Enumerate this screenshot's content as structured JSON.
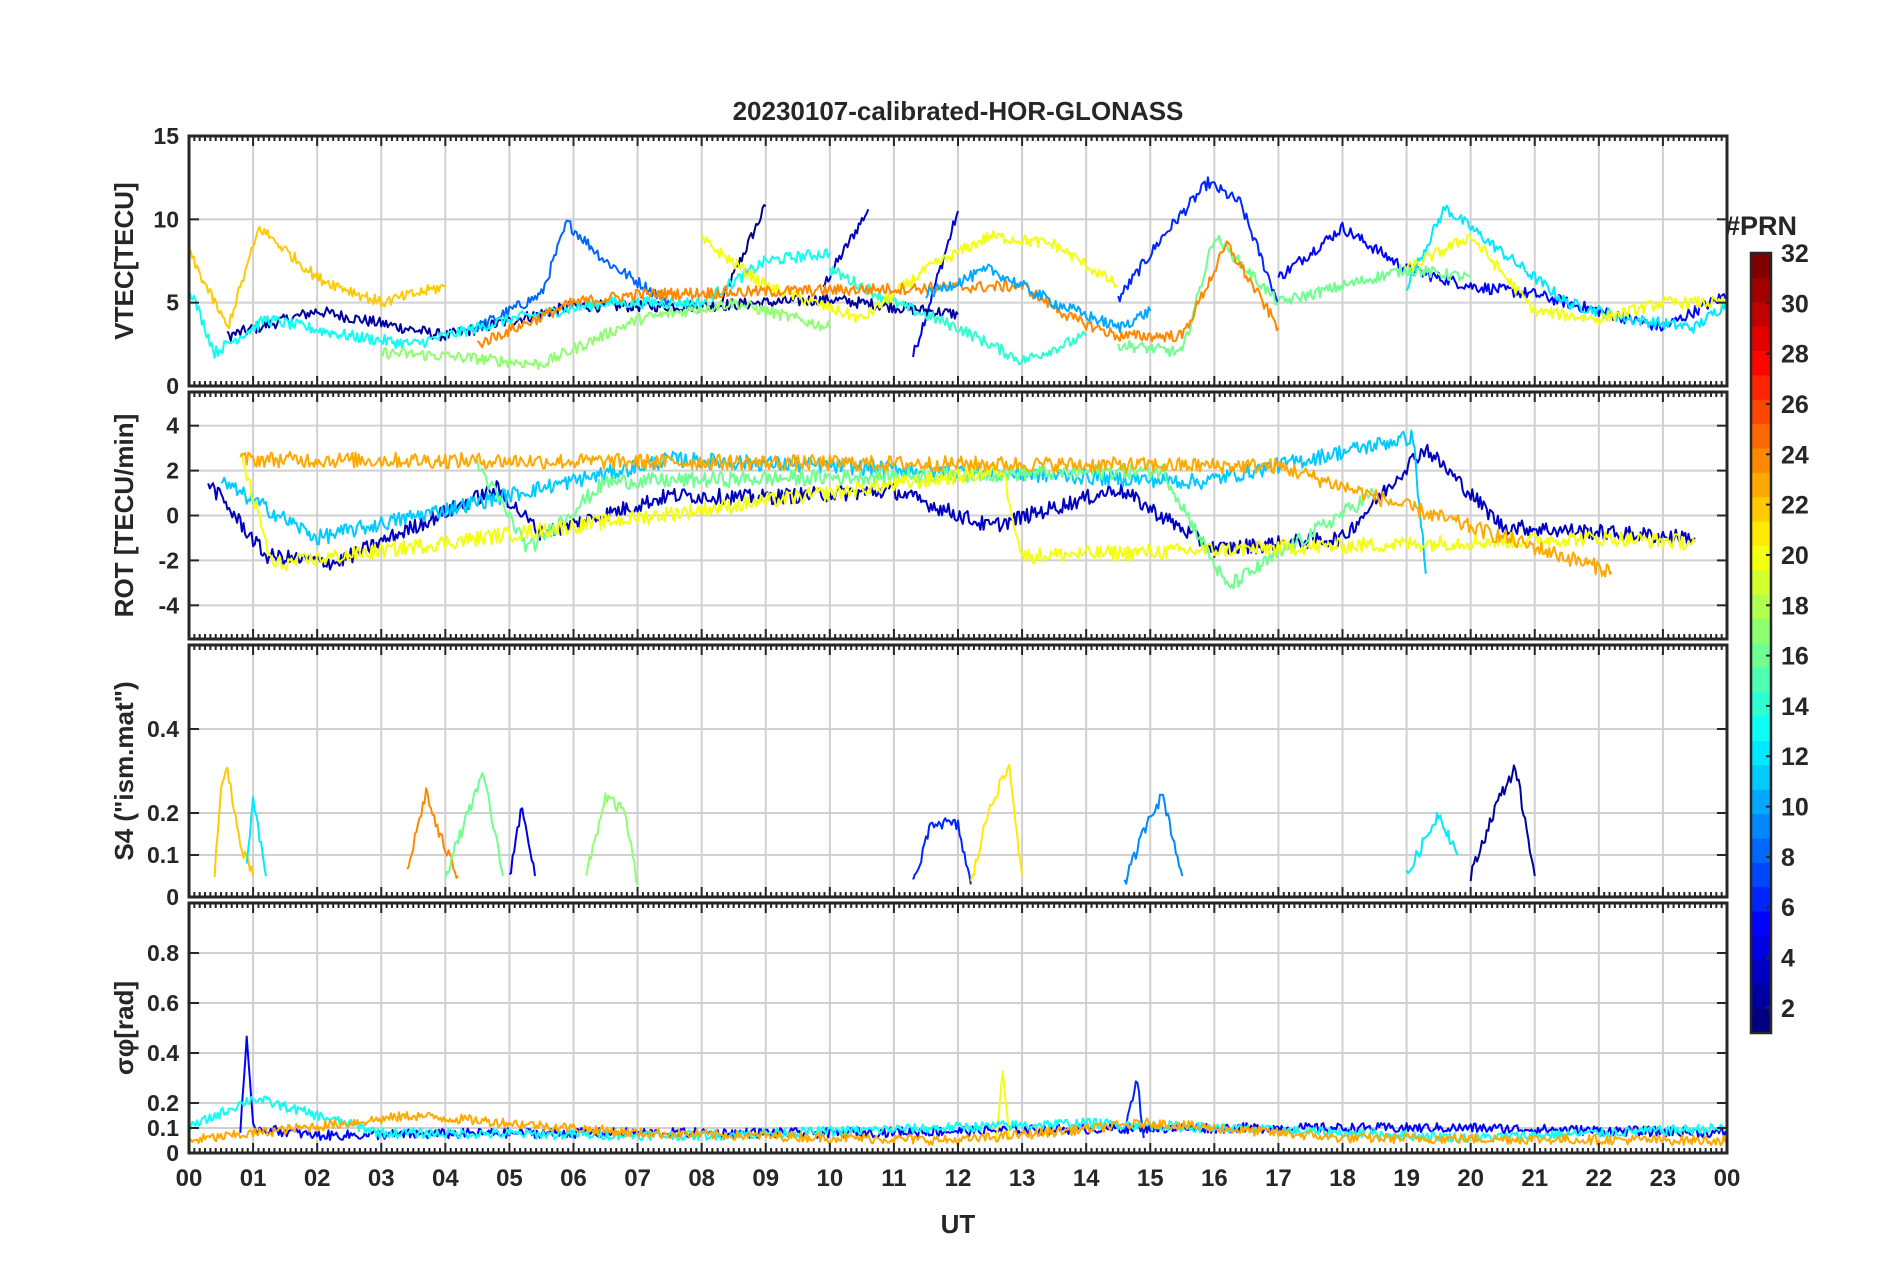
{
  "figure": {
    "title": "20230107-calibrated-HOR-GLONASS",
    "xlabel": "UT",
    "colorbar_label": "#PRN",
    "colorbar_ticks": [
      "2",
      "4",
      "6",
      "8",
      "10",
      "12",
      "14",
      "16",
      "18",
      "20",
      "22",
      "24",
      "26",
      "28",
      "30",
      "32"
    ],
    "colorbar_range": [
      1,
      32
    ],
    "colormap": "jet"
  },
  "chart_data": [
    {
      "type": "line",
      "id": "vtec",
      "ylabel": "VTEC[TECU]",
      "ylim": [
        0,
        15
      ],
      "yticks": [
        "0",
        "5",
        "10",
        "15"
      ],
      "xlim": [
        0,
        24
      ],
      "xticks": [
        "00",
        "01",
        "02",
        "03",
        "04",
        "05",
        "06",
        "07",
        "08",
        "09",
        "10",
        "11",
        "12",
        "13",
        "14",
        "15",
        "16",
        "17",
        "18",
        "19",
        "20",
        "21",
        "22",
        "23",
        "00"
      ],
      "grid": true,
      "series": [
        {
          "prn": 1,
          "x": [
            8.3,
            9.0
          ],
          "y": [
            5.0,
            10.8
          ]
        },
        {
          "prn": 3,
          "x": [
            9.9,
            10.6
          ],
          "y": [
            6.0,
            10.6
          ]
        },
        {
          "prn": 4,
          "x": [
            11.3,
            12.0
          ],
          "y": [
            1.8,
            10.5
          ]
        },
        {
          "prn": 2,
          "x": [
            0.6,
            2.0,
            4.0,
            6.0,
            8.0,
            10.0,
            12.0
          ],
          "y": [
            3.0,
            4.5,
            3.0,
            4.8,
            4.8,
            5.2,
            4.3
          ]
        },
        {
          "prn": 6,
          "x": [
            14.5,
            15.2,
            15.9,
            16.4,
            17.0
          ],
          "y": [
            5.2,
            9.0,
            12.2,
            11.0,
            5.0
          ]
        },
        {
          "prn": 8,
          "x": [
            4.5,
            5.5,
            5.9,
            6.5,
            7.5
          ],
          "y": [
            3.5,
            5.5,
            9.8,
            7.5,
            5.0
          ]
        },
        {
          "prn": 5,
          "x": [
            17.0,
            18.0,
            19.0,
            20.0,
            21.0,
            22.0,
            23.0,
            24.0
          ],
          "y": [
            6.5,
            9.5,
            7.0,
            6.0,
            5.5,
            4.5,
            3.5,
            5.5
          ]
        },
        {
          "prn": 12,
          "x": [
            19.0,
            19.6,
            20.5,
            21.5,
            22.5,
            23.5,
            24.0
          ],
          "y": [
            6.0,
            10.7,
            8.0,
            5.0,
            4.0,
            3.5,
            5.0
          ]
        },
        {
          "prn": 13,
          "x": [
            0.0,
            0.4,
            1.2,
            2.5,
            3.5,
            5.0,
            6.5,
            8.0,
            9.0,
            10.0
          ],
          "y": [
            6.0,
            2.0,
            4.0,
            3.0,
            2.5,
            4.0,
            5.0,
            5.0,
            7.5,
            8.0
          ]
        },
        {
          "prn": 14,
          "x": [
            10.0,
            11.0,
            12.0,
            13.0,
            14.0
          ],
          "y": [
            7.0,
            5.0,
            3.5,
            1.5,
            3.0
          ]
        },
        {
          "prn": 17,
          "x": [
            3.0,
            4.0,
            5.5,
            7.0,
            8.5,
            10.0
          ],
          "y": [
            2.0,
            1.8,
            1.3,
            4.0,
            5.0,
            3.5
          ]
        },
        {
          "prn": 16,
          "x": [
            14.5,
            15.5,
            16.0,
            17.0,
            18.0,
            19.0,
            20.0
          ],
          "y": [
            2.5,
            2.0,
            9.0,
            5.0,
            6.0,
            7.0,
            6.5
          ]
        },
        {
          "prn": 20,
          "x": [
            8.0,
            9.0,
            10.5,
            11.5,
            12.5,
            13.5,
            14.5
          ],
          "y": [
            8.8,
            6.0,
            4.0,
            7.0,
            9.0,
            8.5,
            6.0
          ]
        },
        {
          "prn": 20,
          "x": [
            19.0,
            20.0,
            21.0,
            22.0,
            23.0,
            24.0
          ],
          "y": [
            7.0,
            9.0,
            4.5,
            4.0,
            5.0,
            5.0
          ]
        },
        {
          "prn": 22,
          "x": [
            0.0,
            0.6,
            1.1,
            2.0,
            3.0,
            4.0
          ],
          "y": [
            8.0,
            3.5,
            9.5,
            6.5,
            5.0,
            6.0
          ]
        },
        {
          "prn": 24,
          "x": [
            4.5,
            6.0,
            7.0,
            13.0,
            13.8,
            14.5,
            15.5,
            16.2,
            17.0
          ],
          "y": [
            2.5,
            5.0,
            5.5,
            6.0,
            4.0,
            3.0,
            3.0,
            8.5,
            3.5
          ]
        },
        {
          "prn": 10,
          "x": [
            11.5,
            12.5,
            13.5,
            14.5,
            15.0
          ],
          "y": [
            5.5,
            7.0,
            5.0,
            3.5,
            4.5
          ]
        }
      ]
    },
    {
      "type": "line",
      "id": "rot",
      "ylabel": "ROT [TECU/min]",
      "ylim": [
        -5.5,
        5.5
      ],
      "yticks": [
        "-4",
        "-2",
        "0",
        "2",
        "4"
      ],
      "xlim": [
        0,
        24
      ],
      "grid": true,
      "series": [
        {
          "prn": 3,
          "x": [
            0.3,
            1.2,
            2.3,
            4.8,
            5.5,
            7.5,
            8.8,
            11.0,
            12.5,
            14.5,
            16.0,
            18.0,
            19.1,
            19.3,
            20.5,
            23.5
          ],
          "y": [
            1.5,
            -1.8,
            -2.1,
            1.2,
            -0.8,
            0.9,
            0.8,
            1.1,
            -0.5,
            1.2,
            -1.5,
            -1.0,
            2.5,
            3.0,
            -0.5,
            -1.0
          ]
        },
        {
          "prn": 11,
          "x": [
            0.5,
            2.0,
            7.5,
            15.8,
            19.1,
            19.3
          ],
          "y": [
            1.5,
            -1.0,
            2.5,
            1.5,
            3.5,
            -2.6
          ]
        },
        {
          "prn": 16,
          "x": [
            4.5,
            5.3,
            6.5,
            15.2,
            16.2,
            18.5
          ],
          "y": [
            2.3,
            -1.5,
            1.5,
            2.0,
            -3.2,
            1.0
          ]
        },
        {
          "prn": 20,
          "x": [
            0.8,
            1.3,
            3.2,
            12.7,
            13.0,
            22.0,
            23.5
          ],
          "y": [
            2.8,
            -2.2,
            -1.5,
            2.0,
            -1.8,
            -1.0,
            -1.2
          ]
        },
        {
          "prn": 23,
          "x": [
            0.8,
            6.9,
            17.0,
            22.2
          ],
          "y": [
            2.5,
            2.4,
            2.2,
            -2.5
          ]
        }
      ]
    },
    {
      "type": "line",
      "id": "s4",
      "ylabel": "S4 (\"ism.mat\")",
      "ylim": [
        0,
        0.6
      ],
      "yticks": [
        "0",
        "0.1",
        "0.2",
        "0.4"
      ],
      "xlim": [
        0,
        24
      ],
      "grid": true,
      "series": [
        {
          "prn": 22,
          "x": [
            0.4,
            0.5,
            0.6,
            0.8,
            1.0
          ],
          "y": [
            0.06,
            0.25,
            0.31,
            0.12,
            0.05
          ]
        },
        {
          "prn": 12,
          "x": [
            0.9,
            1.0,
            1.2
          ],
          "y": [
            0.08,
            0.23,
            0.05
          ]
        },
        {
          "prn": 24,
          "x": [
            3.4,
            3.7,
            3.9,
            4.2
          ],
          "y": [
            0.06,
            0.25,
            0.15,
            0.05
          ]
        },
        {
          "prn": 16,
          "x": [
            4.0,
            4.4,
            4.6,
            4.9
          ],
          "y": [
            0.05,
            0.22,
            0.29,
            0.05
          ]
        },
        {
          "prn": 4,
          "x": [
            5.0,
            5.2,
            5.4
          ],
          "y": [
            0.05,
            0.22,
            0.05
          ]
        },
        {
          "prn": 17,
          "x": [
            6.2,
            6.5,
            6.8,
            7.0
          ],
          "y": [
            0.05,
            0.24,
            0.2,
            0.03
          ]
        },
        {
          "prn": 6,
          "x": [
            11.3,
            11.6,
            12.0,
            12.2
          ],
          "y": [
            0.03,
            0.18,
            0.17,
            0.03
          ]
        },
        {
          "prn": 21,
          "x": [
            12.2,
            12.5,
            12.8,
            13.0
          ],
          "y": [
            0.03,
            0.22,
            0.31,
            0.05
          ]
        },
        {
          "prn": 9,
          "x": [
            14.6,
            15.0,
            15.2,
            15.5
          ],
          "y": [
            0.03,
            0.2,
            0.24,
            0.05
          ]
        },
        {
          "prn": 12,
          "x": [
            19.0,
            19.5,
            19.8
          ],
          "y": [
            0.05,
            0.2,
            0.1
          ]
        },
        {
          "prn": 2,
          "x": [
            20.0,
            20.4,
            20.7,
            21.0
          ],
          "y": [
            0.05,
            0.22,
            0.31,
            0.05
          ]
        }
      ]
    },
    {
      "type": "line",
      "id": "sigma_phi",
      "ylabel": "σφ[rad]",
      "ylim": [
        0,
        1.0
      ],
      "yticks": [
        "0",
        "0.1",
        "0.2",
        "0.4",
        "0.6",
        "0.8"
      ],
      "xlim": [
        0,
        24
      ],
      "grid": true,
      "series": [
        {
          "prn": 5,
          "x": [
            0.8,
            0.9,
            1.0,
            2.0,
            5.0,
            10.0,
            15.0,
            20.0,
            24.0
          ],
          "y": [
            0.1,
            0.45,
            0.1,
            0.07,
            0.08,
            0.08,
            0.1,
            0.1,
            0.08
          ]
        },
        {
          "prn": 20,
          "x": [
            12.6,
            12.7,
            12.8
          ],
          "y": [
            0.06,
            0.33,
            0.05
          ]
        },
        {
          "prn": 6,
          "x": [
            14.6,
            14.8,
            14.9
          ],
          "y": [
            0.1,
            0.29,
            0.06
          ]
        },
        {
          "prn": 13,
          "x": [
            0.0,
            1.0,
            3.0,
            8.0,
            14.0,
            20.0,
            24.0
          ],
          "y": [
            0.1,
            0.22,
            0.08,
            0.07,
            0.12,
            0.06,
            0.1
          ]
        },
        {
          "prn": 23,
          "x": [
            0.0,
            3.5,
            7.0,
            12.0,
            15.0,
            18.0,
            24.0
          ],
          "y": [
            0.05,
            0.15,
            0.08,
            0.05,
            0.12,
            0.06,
            0.05
          ]
        }
      ]
    }
  ]
}
